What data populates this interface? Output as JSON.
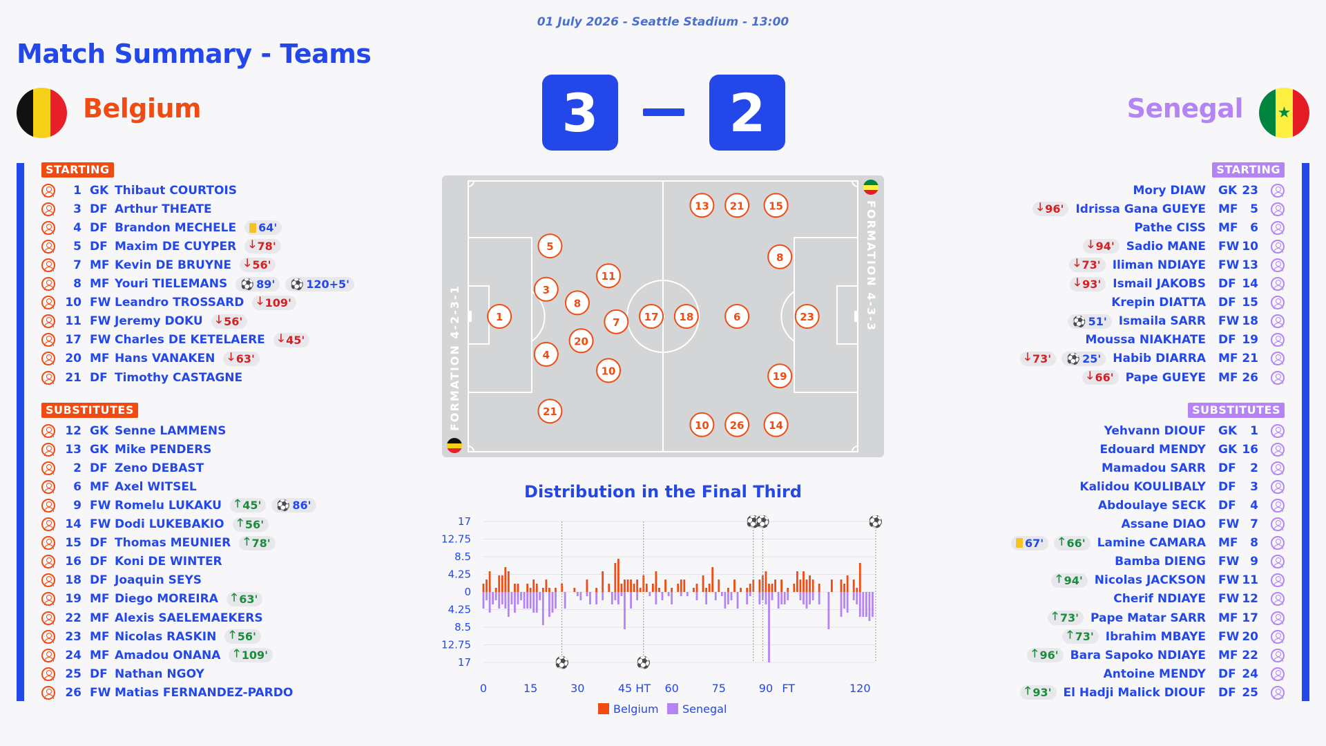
{
  "header": {
    "date_line": "01 July 2026 - Seattle Stadium - 13:00",
    "title": "Match Summary - Teams"
  },
  "home": {
    "name": "Belgium",
    "score": "3",
    "color": "#f04b12",
    "flag": [
      "#111111",
      "#f7d117",
      "#e8202a"
    ],
    "starting_label": "STARTING",
    "subs_label": "SUBSTITUTES",
    "formation": "FORMATION 4-2-3-1",
    "starting": [
      {
        "num": "1",
        "pos": "GK",
        "name": "Thibaut COURTOIS",
        "events": []
      },
      {
        "num": "3",
        "pos": "DF",
        "name": "Arthur THEATE",
        "events": []
      },
      {
        "num": "4",
        "pos": "DF",
        "name": "Brandon MECHELE",
        "events": [
          {
            "type": "card",
            "text": "64'"
          }
        ]
      },
      {
        "num": "5",
        "pos": "DF",
        "name": "Maxim DE CUYPER",
        "events": [
          {
            "type": "sub-off",
            "text": "78'"
          }
        ]
      },
      {
        "num": "7",
        "pos": "MF",
        "name": "Kevin DE BRUYNE",
        "events": [
          {
            "type": "sub-off",
            "text": "56'"
          }
        ]
      },
      {
        "num": "8",
        "pos": "MF",
        "name": "Youri TIELEMANS",
        "events": [
          {
            "type": "goal",
            "text": "89'"
          },
          {
            "type": "goal",
            "text": "120+5'"
          }
        ]
      },
      {
        "num": "10",
        "pos": "FW",
        "name": "Leandro TROSSARD",
        "events": [
          {
            "type": "sub-off",
            "text": "109'"
          }
        ]
      },
      {
        "num": "11",
        "pos": "FW",
        "name": "Jeremy DOKU",
        "events": [
          {
            "type": "sub-off",
            "text": "56'"
          }
        ]
      },
      {
        "num": "17",
        "pos": "FW",
        "name": "Charles DE KETELAERE",
        "events": [
          {
            "type": "sub-off",
            "text": "45'"
          }
        ]
      },
      {
        "num": "20",
        "pos": "MF",
        "name": "Hans VANAKEN",
        "events": [
          {
            "type": "sub-off",
            "text": "63'"
          }
        ]
      },
      {
        "num": "21",
        "pos": "DF",
        "name": "Timothy CASTAGNE",
        "events": []
      }
    ],
    "subs": [
      {
        "num": "12",
        "pos": "GK",
        "name": "Senne LAMMENS",
        "events": []
      },
      {
        "num": "13",
        "pos": "GK",
        "name": "Mike PENDERS",
        "events": []
      },
      {
        "num": "2",
        "pos": "DF",
        "name": "Zeno DEBAST",
        "events": []
      },
      {
        "num": "6",
        "pos": "MF",
        "name": "Axel WITSEL",
        "events": []
      },
      {
        "num": "9",
        "pos": "FW",
        "name": "Romelu LUKAKU",
        "events": [
          {
            "type": "sub-on",
            "text": "45'"
          },
          {
            "type": "goal",
            "text": "86'"
          }
        ]
      },
      {
        "num": "14",
        "pos": "FW",
        "name": "Dodi LUKEBAKIO",
        "events": [
          {
            "type": "sub-on",
            "text": "56'"
          }
        ]
      },
      {
        "num": "15",
        "pos": "DF",
        "name": "Thomas MEUNIER",
        "events": [
          {
            "type": "sub-on",
            "text": "78'"
          }
        ]
      },
      {
        "num": "16",
        "pos": "DF",
        "name": "Koni DE WINTER",
        "events": []
      },
      {
        "num": "18",
        "pos": "DF",
        "name": "Joaquin SEYS",
        "events": []
      },
      {
        "num": "19",
        "pos": "MF",
        "name": "Diego MOREIRA",
        "events": [
          {
            "type": "sub-on",
            "text": "63'"
          }
        ]
      },
      {
        "num": "22",
        "pos": "MF",
        "name": "Alexis SAELEMAEKERS",
        "events": []
      },
      {
        "num": "23",
        "pos": "MF",
        "name": "Nicolas RASKIN",
        "events": [
          {
            "type": "sub-on",
            "text": "56'"
          }
        ]
      },
      {
        "num": "24",
        "pos": "MF",
        "name": "Amadou ONANA",
        "events": [
          {
            "type": "sub-on",
            "text": "109'"
          }
        ]
      },
      {
        "num": "25",
        "pos": "DF",
        "name": "Nathan NGOY",
        "events": []
      },
      {
        "num": "26",
        "pos": "FW",
        "name": "Matias FERNANDEZ-PARDO",
        "events": []
      }
    ],
    "pitch": [
      {
        "n": "1",
        "c": [
          8,
          50
        ]
      },
      {
        "n": "3",
        "c": [
          20,
          40
        ]
      },
      {
        "n": "4",
        "c": [
          20,
          64
        ]
      },
      {
        "n": "5",
        "c": [
          21,
          24
        ]
      },
      {
        "n": "21",
        "c": [
          21,
          85
        ]
      },
      {
        "n": "8",
        "c": [
          28,
          45
        ]
      },
      {
        "n": "20",
        "c": [
          29,
          59
        ]
      },
      {
        "n": "11",
        "c": [
          36,
          35
        ]
      },
      {
        "n": "10",
        "c": [
          36,
          70
        ]
      },
      {
        "n": "7",
        "c": [
          38,
          52
        ]
      },
      {
        "n": "17",
        "c": [
          47,
          50
        ]
      }
    ]
  },
  "away": {
    "name": "Senegal",
    "score": "2",
    "color": "#b484f5",
    "flag": [
      "#00853f",
      "#fdef42",
      "#e31b23"
    ],
    "starting_label": "STARTING",
    "subs_label": "SUBSTITUTES",
    "formation": "FORMATION 4-3-3",
    "starting": [
      {
        "num": "23",
        "pos": "GK",
        "name": "Mory DIAW",
        "events": []
      },
      {
        "num": "5",
        "pos": "MF",
        "name": "Idrissa Gana GUEYE",
        "events": [
          {
            "type": "sub-off",
            "text": "96'"
          }
        ]
      },
      {
        "num": "6",
        "pos": "MF",
        "name": "Pathe CISS",
        "events": []
      },
      {
        "num": "10",
        "pos": "FW",
        "name": "Sadio MANE",
        "events": [
          {
            "type": "sub-off",
            "text": "94'"
          }
        ]
      },
      {
        "num": "13",
        "pos": "FW",
        "name": "Iliman NDIAYE",
        "events": [
          {
            "type": "sub-off",
            "text": "73'"
          }
        ]
      },
      {
        "num": "14",
        "pos": "DF",
        "name": "Ismail JAKOBS",
        "events": [
          {
            "type": "sub-off",
            "text": "93'"
          }
        ]
      },
      {
        "num": "15",
        "pos": "DF",
        "name": "Krepin DIATTA",
        "events": []
      },
      {
        "num": "18",
        "pos": "FW",
        "name": "Ismaila SARR",
        "events": [
          {
            "type": "goal",
            "text": "51'"
          }
        ]
      },
      {
        "num": "19",
        "pos": "DF",
        "name": "Moussa NIAKHATE",
        "events": []
      },
      {
        "num": "21",
        "pos": "MF",
        "name": "Habib DIARRA",
        "events": [
          {
            "type": "sub-off",
            "text": "73'"
          },
          {
            "type": "goal",
            "text": "25'"
          }
        ]
      },
      {
        "num": "26",
        "pos": "MF",
        "name": "Pape GUEYE",
        "events": [
          {
            "type": "sub-off",
            "text": "66'"
          }
        ]
      }
    ],
    "subs": [
      {
        "num": "1",
        "pos": "GK",
        "name": "Yehvann DIOUF",
        "events": []
      },
      {
        "num": "16",
        "pos": "GK",
        "name": "Edouard MENDY",
        "events": []
      },
      {
        "num": "2",
        "pos": "DF",
        "name": "Mamadou SARR",
        "events": []
      },
      {
        "num": "3",
        "pos": "DF",
        "name": "Kalidou KOULIBALY",
        "events": []
      },
      {
        "num": "4",
        "pos": "DF",
        "name": "Abdoulaye SECK",
        "events": []
      },
      {
        "num": "7",
        "pos": "FW",
        "name": "Assane DIAO",
        "events": []
      },
      {
        "num": "8",
        "pos": "MF",
        "name": "Lamine CAMARA",
        "events": [
          {
            "type": "card",
            "text": "67'"
          },
          {
            "type": "sub-on",
            "text": "66'"
          }
        ]
      },
      {
        "num": "9",
        "pos": "FW",
        "name": "Bamba DIENG",
        "events": []
      },
      {
        "num": "11",
        "pos": "FW",
        "name": "Nicolas JACKSON",
        "events": [
          {
            "type": "sub-on",
            "text": "94'"
          }
        ]
      },
      {
        "num": "12",
        "pos": "FW",
        "name": "Cherif NDIAYE",
        "events": []
      },
      {
        "num": "17",
        "pos": "MF",
        "name": "Pape Matar SARR",
        "events": [
          {
            "type": "sub-on",
            "text": "73'"
          }
        ]
      },
      {
        "num": "20",
        "pos": "FW",
        "name": "Ibrahim MBAYE",
        "events": [
          {
            "type": "sub-on",
            "text": "73'"
          }
        ]
      },
      {
        "num": "22",
        "pos": "MF",
        "name": "Bara Sapoko NDIAYE",
        "events": [
          {
            "type": "sub-on",
            "text": "96'"
          }
        ]
      },
      {
        "num": "24",
        "pos": "DF",
        "name": "Antoine MENDY",
        "events": []
      },
      {
        "num": "25",
        "pos": "DF",
        "name": "El Hadji Malick DIOUF",
        "events": [
          {
            "type": "sub-on",
            "text": "93'"
          }
        ]
      }
    ],
    "pitch": [
      {
        "n": "13",
        "c": [
          60,
          9
        ]
      },
      {
        "n": "21",
        "c": [
          69,
          9
        ]
      },
      {
        "n": "15",
        "c": [
          79,
          9
        ]
      },
      {
        "n": "8",
        "c": [
          80,
          28
        ]
      },
      {
        "n": "18",
        "c": [
          56,
          50
        ]
      },
      {
        "n": "6",
        "c": [
          69,
          50
        ]
      },
      {
        "n": "23",
        "c": [
          87,
          50
        ]
      },
      {
        "n": "19",
        "c": [
          80,
          72
        ]
      },
      {
        "n": "10",
        "c": [
          60,
          90
        ]
      },
      {
        "n": "26",
        "c": [
          69,
          90
        ]
      },
      {
        "n": "14",
        "c": [
          79,
          90
        ]
      }
    ]
  },
  "chart_data": {
    "type": "bar",
    "title": "Distribution in the Final Third",
    "x_ticks": [
      "0",
      "15",
      "30",
      "45 HT",
      "60",
      "75",
      "90",
      "FT",
      "120"
    ],
    "x_tick_values": [
      0,
      15,
      30,
      45,
      60,
      75,
      90,
      95,
      120
    ],
    "y_ticks": [
      "17",
      "12.75",
      "8.5",
      "4.25",
      "0",
      "4.25",
      "8.5",
      "12.75",
      "17"
    ],
    "ylim": [
      -17,
      17
    ],
    "legend": [
      "Belgium",
      "Senegal"
    ],
    "series_colors": [
      "#f04b12",
      "#b484f5"
    ],
    "series": [
      {
        "name": "Belgium",
        "minutes": [
          0,
          1,
          2,
          4,
          5,
          6,
          7,
          8,
          10,
          11,
          14,
          15,
          16,
          17,
          19,
          20,
          21,
          23,
          25,
          29,
          33,
          36,
          38,
          40,
          42,
          43,
          44,
          45,
          46,
          47,
          48,
          49,
          50,
          51,
          52,
          54,
          55,
          56,
          58,
          60,
          62,
          63,
          64,
          67,
          68,
          70,
          71,
          72,
          73,
          75,
          78,
          80,
          82,
          84,
          85,
          86,
          88,
          89,
          90,
          91,
          92,
          93,
          95,
          97,
          99,
          100,
          101,
          102,
          103,
          104,
          105,
          107,
          111,
          114,
          115,
          116,
          118,
          119,
          120
        ],
        "values": [
          2,
          3,
          5,
          1,
          4,
          4,
          6,
          5,
          2,
          2,
          2,
          1,
          3,
          2,
          1,
          3,
          1,
          1,
          2,
          1,
          3,
          1,
          5,
          2,
          7,
          8,
          2,
          3,
          3,
          3,
          2,
          3,
          1,
          4,
          2,
          2,
          5,
          1,
          3,
          1,
          2,
          3,
          3,
          1,
          2,
          4,
          1,
          2,
          6,
          3,
          1,
          3,
          1,
          1,
          2,
          3,
          3,
          4,
          5,
          2,
          2,
          3,
          3,
          1,
          2,
          5,
          3,
          5,
          3,
          4,
          3,
          2,
          3,
          3,
          2,
          4,
          3,
          1,
          7
        ]
      },
      {
        "name": "Senegal",
        "minutes": [
          0,
          1,
          2,
          3,
          4,
          5,
          6,
          7,
          8,
          9,
          10,
          11,
          12,
          13,
          14,
          15,
          16,
          17,
          18,
          19,
          21,
          22,
          23,
          26,
          30,
          31,
          33,
          34,
          36,
          38,
          41,
          42,
          43,
          44,
          45,
          47,
          49,
          53,
          55,
          57,
          59,
          60,
          63,
          65,
          68,
          71,
          74,
          76,
          77,
          78,
          79,
          81,
          84,
          85,
          88,
          89,
          90,
          91,
          92,
          94,
          95,
          96,
          97,
          101,
          102,
          103,
          104,
          105,
          107,
          110,
          114,
          115,
          116,
          118,
          119,
          120,
          121,
          122,
          123,
          124
        ],
        "values": [
          -4,
          -2,
          -5,
          -3,
          -2,
          -4,
          -3,
          -4,
          -6,
          -3,
          -5,
          -3,
          -2,
          -4,
          -4,
          -4,
          -5,
          -5,
          -2,
          -8,
          -6,
          -5,
          -4,
          -4,
          -1,
          -2,
          -1,
          -3,
          -3,
          -2,
          -3,
          -2,
          -3,
          -1,
          -9,
          -4,
          -2,
          -1,
          -3,
          -2,
          -1,
          -3,
          -1,
          -1,
          -2,
          -3,
          -2,
          -1,
          -4,
          -3,
          -2,
          -4,
          -3,
          -1,
          -3,
          -2,
          -3,
          -17,
          -2,
          -4,
          -3,
          -3,
          -2,
          -2,
          -3,
          -4,
          -3,
          -2,
          -3,
          -9,
          -6,
          -4,
          -5,
          -2,
          -3,
          -6,
          -6,
          -6,
          -7,
          -6
        ]
      }
    ],
    "goals": [
      {
        "team": "Senegal",
        "minute": 25
      },
      {
        "team": "Senegal",
        "minute": 51
      },
      {
        "team": "Belgium",
        "minute": 86
      },
      {
        "team": "Belgium",
        "minute": 89
      },
      {
        "team": "Belgium",
        "minute": 125
      }
    ]
  }
}
